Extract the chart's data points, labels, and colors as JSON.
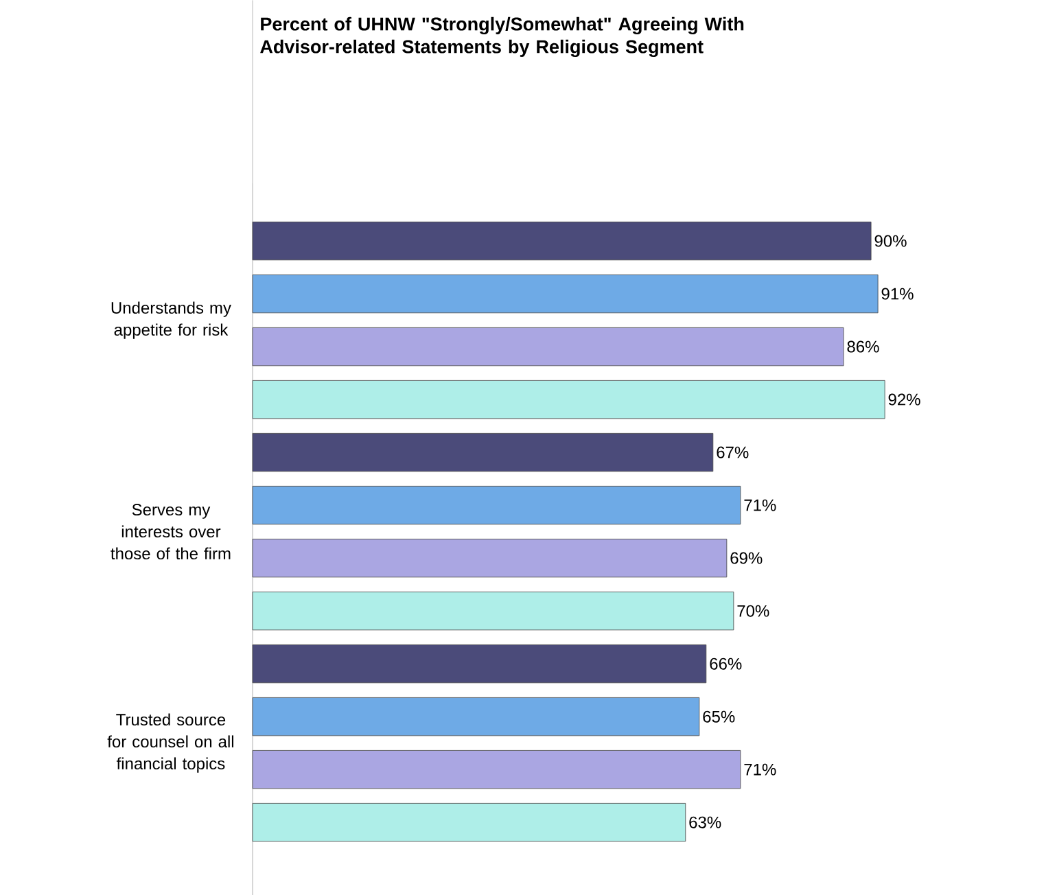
{
  "chart_data": {
    "type": "bar",
    "orientation": "horizontal",
    "title": "Percent of UHNW \"Strongly/Somewhat\" Agreeing With Advisor-related Statements by Religious Segment",
    "categories": [
      "Understands my appetite for risk",
      "Serves my interests over those of the firm",
      "Trusted source for counsel on all financial topics"
    ],
    "series": [
      {
        "color": "#4b4b7a",
        "values": [
          90,
          67,
          66
        ],
        "value_labels": [
          "90%",
          "67%",
          "66%"
        ]
      },
      {
        "color": "#6eaae6",
        "values": [
          91,
          71,
          65
        ],
        "value_labels": [
          "91%",
          "71%",
          "65%"
        ]
      },
      {
        "color": "#aaa6e2",
        "values": [
          86,
          69,
          71
        ],
        "value_labels": [
          "86%",
          "69%",
          "71%"
        ]
      },
      {
        "color": "#aeeee8",
        "values": [
          92,
          70,
          63
        ],
        "value_labels": [
          "92%",
          "70%",
          "63%"
        ]
      }
    ]
  }
}
